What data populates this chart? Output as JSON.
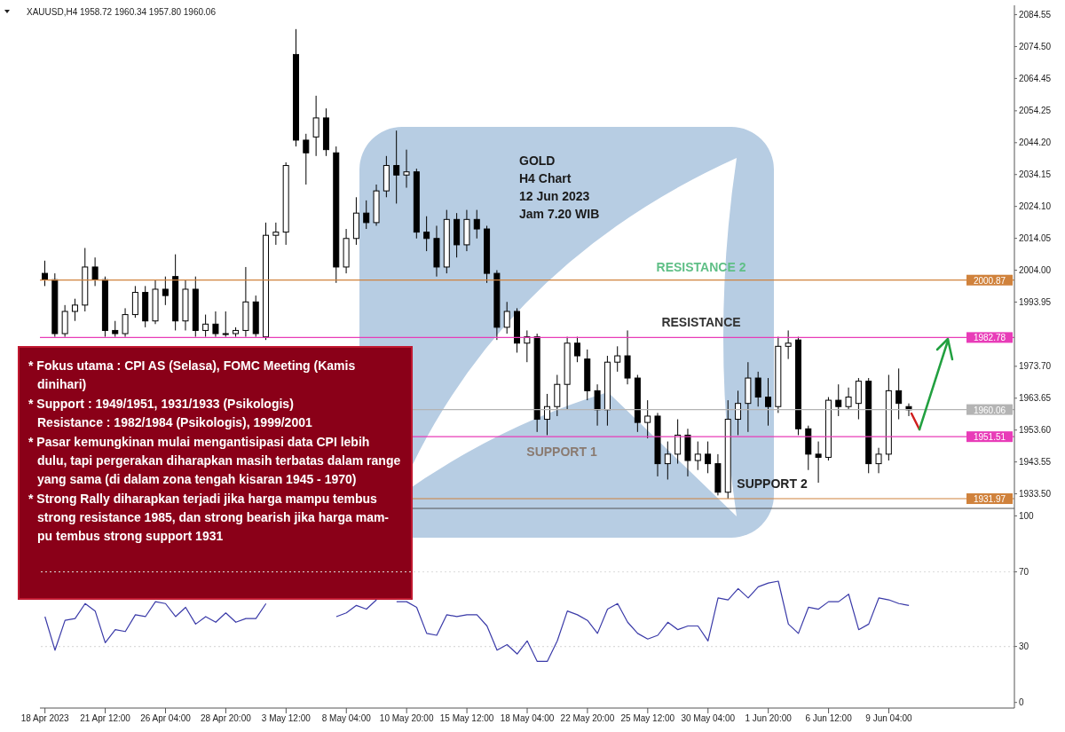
{
  "chart_data": [
    {
      "type": "candlestick",
      "title": "XAUUSD,H4  1958.72 1960.34 1957.80 1960.06",
      "subtitle": "GOLD\nH4 Chart\n12 Jun 2023\nJam 7.20 WIB",
      "color": "#000000",
      "categories": [
        null,
        null,
        null,
        null,
        null,
        null,
        null,
        null,
        null,
        null,
        null,
        null,
        null,
        null,
        null,
        null,
        null,
        null,
        null,
        null,
        null,
        null,
        null,
        null,
        null,
        null,
        null,
        null,
        null,
        null,
        null,
        null,
        null,
        null,
        null,
        null,
        null,
        null,
        null,
        null,
        null,
        null,
        null,
        null,
        null,
        null,
        null,
        null,
        null,
        null,
        null,
        null,
        null,
        null,
        null,
        null,
        null,
        null,
        null,
        null,
        null,
        null,
        null,
        null,
        null,
        null,
        null,
        null,
        null,
        null,
        null,
        null,
        null,
        null,
        null,
        null,
        null,
        null,
        null,
        null,
        null,
        null,
        null,
        null,
        null,
        null,
        null,
        null,
        null,
        null,
        null,
        null,
        null,
        null,
        null,
        null,
        null
      ],
      "ohlc": [
        [
          2003,
          2007,
          1999,
          2001
        ],
        [
          2001,
          2003,
          1983,
          1984
        ],
        [
          1984,
          1993,
          1983,
          1991
        ],
        [
          1991,
          1995,
          1988,
          1993
        ],
        [
          1993,
          2011,
          1991,
          2005
        ],
        [
          2005,
          2008,
          1999,
          2001
        ],
        [
          2001,
          2002,
          1983,
          1985
        ],
        [
          1985,
          1988,
          1983,
          1984
        ],
        [
          1984,
          1992,
          1983,
          1990
        ],
        [
          1990,
          1999,
          1989,
          1997
        ],
        [
          1997,
          1999,
          1986,
          1988
        ],
        [
          1988,
          2001,
          1987,
          1998
        ],
        [
          1998,
          2002,
          1993,
          1996
        ],
        [
          2002,
          2009,
          1985,
          1988
        ],
        [
          1988,
          2001,
          1985,
          1998
        ],
        [
          1998,
          2002,
          1983,
          1985
        ],
        [
          1985,
          1990,
          1983,
          1987
        ],
        [
          1987,
          1991,
          1983,
          1984
        ],
        [
          1984,
          1991,
          1983,
          1984
        ],
        [
          1984,
          1986,
          1983,
          1985
        ],
        [
          1985,
          2005,
          1983,
          1994
        ],
        [
          1994,
          1996,
          1983,
          1984
        ],
        [
          1983,
          2019,
          1982,
          2015
        ],
        [
          2015,
          2019,
          2012,
          2016
        ],
        [
          2016,
          2038,
          2012,
          2037
        ],
        [
          2072,
          2080,
          2043,
          2045
        ],
        [
          2045,
          2047,
          2031,
          2041
        ],
        [
          2046,
          2059,
          2040,
          2052
        ],
        [
          2052,
          2055,
          2040,
          2042
        ],
        [
          2041,
          2043,
          2000,
          2005
        ],
        [
          2005,
          2017,
          2003,
          2014
        ],
        [
          2014,
          2027,
          2012,
          2022
        ],
        [
          2022,
          2026,
          2017,
          2019
        ],
        [
          2019,
          2031,
          2018,
          2029
        ],
        [
          2029,
          2040,
          2027,
          2037
        ],
        [
          2037,
          2048,
          2025,
          2034
        ],
        [
          2034,
          2042,
          2030,
          2035
        ],
        [
          2035,
          2036,
          2014,
          2016
        ],
        [
          2016,
          2021,
          2010,
          2014
        ],
        [
          2014,
          2018,
          2002,
          2005
        ],
        [
          2005,
          2023,
          2003,
          2020
        ],
        [
          2020,
          2022,
          2008,
          2012
        ],
        [
          2012,
          2023,
          2010,
          2020
        ],
        [
          2020,
          2023,
          2014,
          2017
        ],
        [
          2017,
          2018,
          2000,
          2003
        ],
        [
          2003,
          2004,
          1982,
          1986
        ],
        [
          1986,
          1994,
          1984,
          1991
        ],
        [
          1991,
          1992,
          1978,
          1981
        ],
        [
          1981,
          1985,
          1975,
          1983
        ],
        [
          1983,
          1984,
          1953,
          1957
        ],
        [
          1957,
          1965,
          1952,
          1961
        ],
        [
          1961,
          1971,
          1958,
          1968
        ],
        [
          1968,
          1983,
          1960,
          1981
        ],
        [
          1981,
          1983,
          1975,
          1977
        ],
        [
          1976,
          1979,
          1963,
          1966
        ],
        [
          1966,
          1968,
          1955,
          1960
        ],
        [
          1960,
          1977,
          1955,
          1975
        ],
        [
          1975,
          1980,
          1972,
          1977
        ],
        [
          1977,
          1985,
          1968,
          1970
        ],
        [
          1970,
          1971,
          1953,
          1956
        ],
        [
          1956,
          1963,
          1951,
          1958
        ],
        [
          1958,
          1959,
          1939,
          1943
        ],
        [
          1943,
          1950,
          1938,
          1946
        ],
        [
          1946,
          1957,
          1943,
          1952
        ],
        [
          1952,
          1954,
          1939,
          1944
        ],
        [
          1944,
          1950,
          1941,
          1946
        ],
        [
          1946,
          1950,
          1940,
          1943
        ],
        [
          1943,
          1946,
          1933,
          1934
        ],
        [
          1934,
          1963,
          1932,
          1957
        ],
        [
          1957,
          1966,
          1952,
          1962
        ],
        [
          1962,
          1975,
          1953,
          1970
        ],
        [
          1970,
          1972,
          1961,
          1964
        ],
        [
          1964,
          1970,
          1955,
          1961
        ],
        [
          1961,
          1983,
          1959,
          1980
        ],
        [
          1980,
          1985,
          1976,
          1981
        ],
        [
          1982,
          1983,
          1952,
          1954
        ],
        [
          1954,
          1955,
          1941,
          1946
        ],
        [
          1946,
          1950,
          1937,
          1945
        ],
        [
          1945,
          1964,
          1944,
          1963
        ],
        [
          1963,
          1968,
          1958,
          1961
        ],
        [
          1961,
          1967,
          1960,
          1964
        ],
        [
          1962,
          1970,
          1957,
          1969
        ],
        [
          1969,
          1970,
          1940,
          1943
        ],
        [
          1943,
          1948,
          1940,
          1946
        ],
        [
          1946,
          1971,
          1944,
          1966
        ],
        [
          1966,
          1973,
          1957,
          1962
        ],
        [
          1961,
          1962,
          1958,
          1960
        ],
        null,
        null,
        null,
        null,
        null,
        null,
        null,
        null,
        null,
        null
      ],
      "ylim": [
        1928.9,
        2087.5
      ],
      "yticks": [
        2084.55,
        {
          "value": 2074.5,
          "label": "2074.50"
        },
        2064.45,
        2054.25,
        {
          "value": 2044.2,
          "label": "2044.20"
        },
        2034.15,
        {
          "value": 2024.1,
          "label": "2024.10"
        },
        2014.05,
        {
          "value": 2004,
          "label": "2004.00"
        },
        1993.95,
        {
          "value": 1973.7,
          "label": "1973.70"
        },
        1963.65,
        {
          "value": 1953.6,
          "label": "1953.60"
        },
        1943.55,
        {
          "value": 1933.5,
          "label": "1933.50"
        }
      ],
      "tick_labels": "y",
      "ref_lines": [
        {
          "axis": "y",
          "value": 2000.87,
          "label": "2000.87",
          "color": "#d0823c"
        },
        {
          "axis": "y",
          "value": 1982.78,
          "label": "1982.78",
          "color": "#e83cb8"
        },
        {
          "axis": "y",
          "value": 1960.06,
          "label": "1960.06",
          "color": "#b4b4b4"
        },
        {
          "axis": "y",
          "value": 1951.51,
          "label": "1951.51",
          "color": "#e83cb8"
        },
        {
          "axis": "y",
          "value": 1931.97,
          "label": "1931.97",
          "color": "#d0823c"
        }
      ],
      "annotations": [
        {
          "text": "RESISTANCE 2",
          "y": 2000.87
        },
        {
          "text": "RESISTANCE",
          "y": 1982.78
        },
        {
          "text": "SUPPORT 1",
          "y": 1951.51
        },
        {
          "text": "SUPPORT 2",
          "y": 1931.97
        },
        "* Fokus utama : CPI AS (Selasa), FOMC Meeting (Kamis dinihari)",
        "* Support : 1949/1951, 1931/1933 (Psikologis)\nResistance : 1982/1984 (Psikologis), 1999/2001",
        "* Pasar kemungkinan mulai mengantisipasi data CPI lebih dulu, tapi pergerakan diharapkan masih terbatas dalam range yang sama (di dalam zona tengah kisaran 1945 - 1970)",
        "* Strong Rally diharapkan terjadi jika harga mampu tembus strong resistance 1985, dan strong bearish jika harga mam-pu tembus strong support 1931"
      ]
    },
    {
      "type": "line",
      "categories": [
        "18 Apr 2023",
        null,
        null,
        null,
        null,
        null,
        "21 Apr 12:00",
        null,
        null,
        null,
        null,
        null,
        "26 Apr 04:00",
        null,
        null,
        null,
        null,
        null,
        "28 Apr 20:00",
        null,
        null,
        null,
        null,
        null,
        "3 May 12:00",
        null,
        null,
        null,
        null,
        null,
        "8 May 04:00",
        null,
        null,
        null,
        null,
        null,
        "10 May 20:00",
        null,
        null,
        null,
        null,
        null,
        "15 May 12:00",
        null,
        null,
        null,
        null,
        null,
        "18 May 04:00",
        null,
        null,
        null,
        null,
        null,
        "22 May 20:00",
        null,
        null,
        null,
        null,
        null,
        "25 May 12:00",
        null,
        null,
        null,
        null,
        null,
        "30 May 04:00",
        null,
        null,
        null,
        null,
        null,
        "1 Jun 20:00",
        null,
        null,
        null,
        null,
        null,
        "6 Jun 12:00",
        null,
        null,
        null,
        null,
        null,
        "9 Jun 04:00",
        null,
        null,
        null,
        null,
        null,
        null,
        null,
        null,
        null,
        null,
        null,
        null
      ],
      "series": [
        {
          "color": "#3a3aa8",
          "values": [
            46,
            28,
            44,
            45,
            53,
            49,
            32,
            39,
            38,
            47,
            46,
            54,
            53,
            46,
            51,
            42,
            46,
            43,
            48,
            43,
            45,
            45,
            53,
            null,
            null,
            null,
            null,
            null,
            null,
            46,
            48,
            52,
            50,
            55,
            null,
            54,
            54,
            51,
            37,
            36,
            47,
            46,
            47,
            47,
            41,
            28,
            31,
            26,
            33,
            22,
            22,
            33,
            49,
            47,
            44,
            37,
            50,
            53,
            43,
            37,
            34,
            36,
            43,
            39,
            41,
            41,
            33,
            56,
            55,
            61,
            56,
            62,
            64,
            65,
            42,
            37,
            51,
            50,
            54,
            54,
            58,
            39,
            42,
            56,
            55,
            53,
            52,
            null,
            null,
            null,
            null,
            null,
            null,
            null,
            null,
            null,
            null
          ]
        }
      ],
      "ylim": [
        -3,
        104
      ],
      "yticks": [
        0,
        30,
        70,
        100
      ],
      "ref_lines": [
        {
          "axis": "y",
          "value": 70,
          "color": "#dcdcdc",
          "line_style": "dotted"
        },
        {
          "axis": "y",
          "value": 30,
          "color": "#dcdcdc",
          "line_style": "dotted"
        }
      ]
    }
  ]
}
